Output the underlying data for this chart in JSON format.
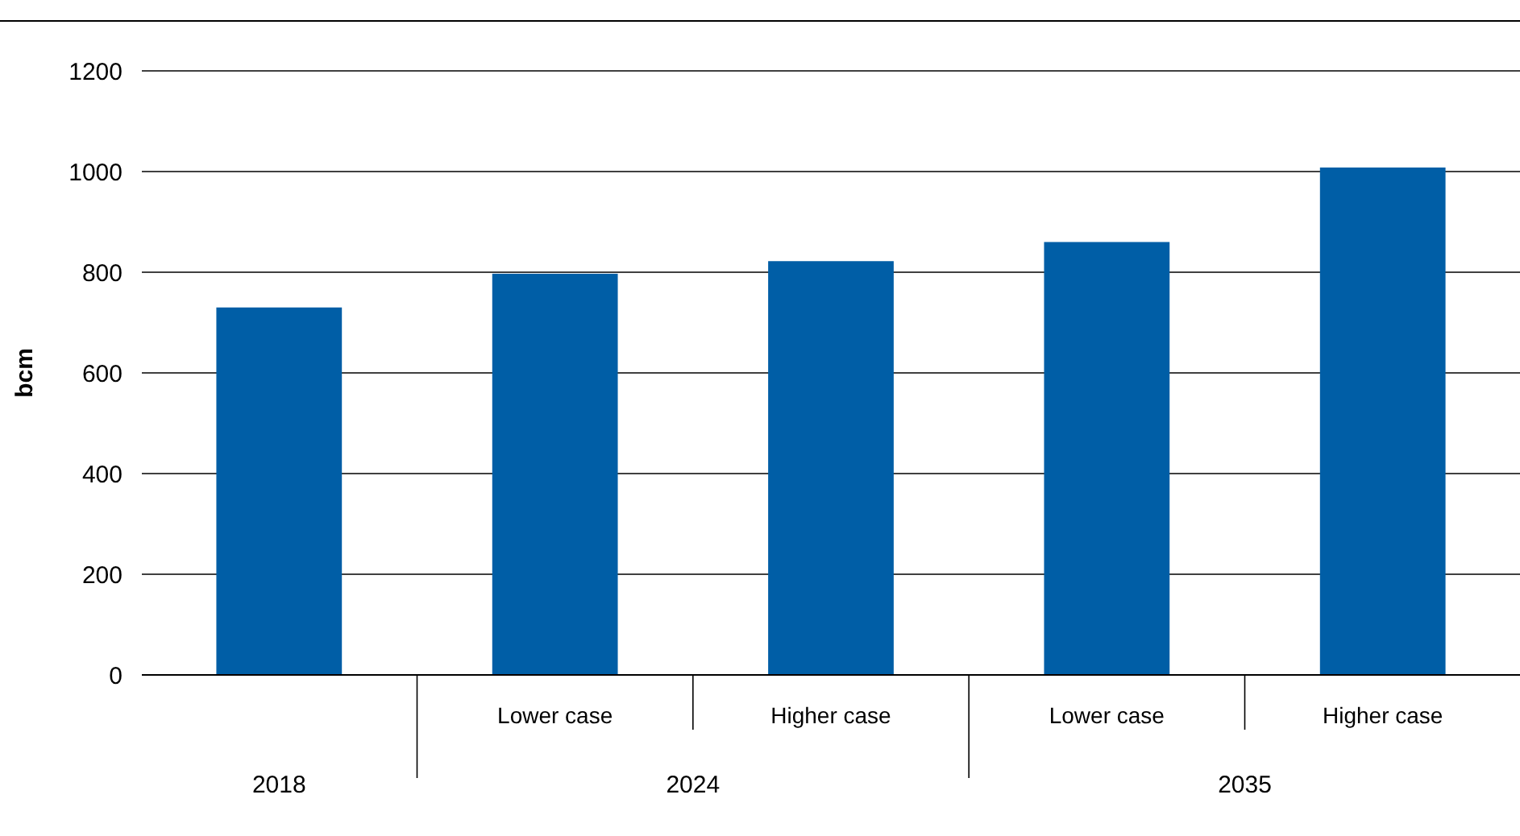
{
  "chart_data": {
    "type": "bar",
    "ylabel": "bcm",
    "categories": [
      null,
      "Lower case",
      "Higher case",
      "Lower case",
      "Higher case"
    ],
    "values": [
      730,
      797,
      822,
      860,
      1008
    ],
    "color": "#005ea6",
    "ylim": [
      0,
      1200
    ],
    "yticks": [
      0,
      200,
      400,
      600,
      800,
      1000,
      1200
    ],
    "grid": "y",
    "annotations": [
      "2018",
      "2024",
      "2035"
    ]
  }
}
